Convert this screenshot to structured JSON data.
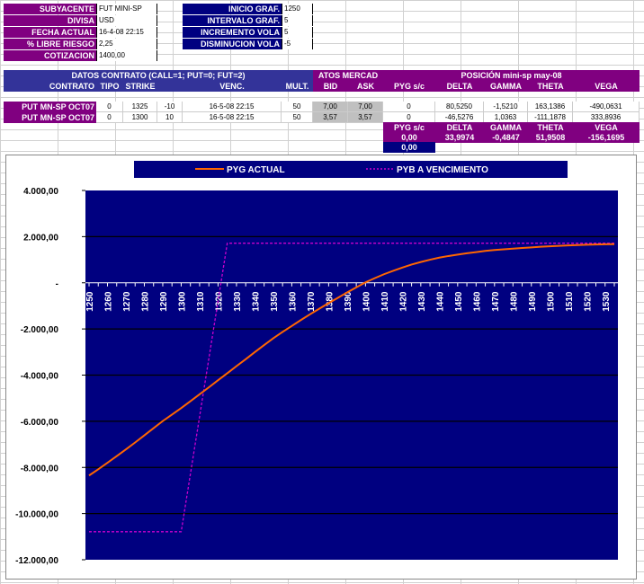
{
  "params_left": [
    {
      "label": "SUBYACENTE",
      "value": "FUT MINI-SP"
    },
    {
      "label": "DIVISA",
      "value": "USD"
    },
    {
      "label": "FECHA ACTUAL",
      "value": "16-4-08 22:15"
    },
    {
      "label": "% LIBRE RIESGO",
      "value": "2,25"
    },
    {
      "label": "COTIZACION",
      "value": "1400,00"
    }
  ],
  "params_right": [
    {
      "label": "INICIO GRAF.",
      "value": "1250"
    },
    {
      "label": "INTERVALO GRAF.",
      "value": "5"
    },
    {
      "label": "INCREMENTO VOLA",
      "value": "5"
    },
    {
      "label": "DISMINUCION VOLA",
      "value": "-5"
    }
  ],
  "table": {
    "group_contract": "DATOS CONTRATO (CALL=1; PUT=0; FUT=2)",
    "group_market": "ATOS MERCAD",
    "group_position": "POSICIÓN mini-sp may-08",
    "headers": [
      "CONTRATO",
      "TIPO",
      "STRIKE",
      "",
      "VENC.",
      "MULT.",
      "BID",
      "ASK",
      "PYG s/c",
      "DELTA",
      "GAMMA",
      "THETA",
      "VEGA"
    ],
    "rows": [
      [
        "PUT MN-SP OCT07",
        "0",
        "1325",
        "-10",
        "16-5-08 22:15",
        "50",
        "7,00",
        "7,00",
        "0",
        "80,5250",
        "-1,5210",
        "163,1386",
        "-490,0631"
      ],
      [
        "PUT MN-SP OCT07",
        "0",
        "1300",
        "10",
        "16-5-08 22:15",
        "50",
        "3,57",
        "3,57",
        "0",
        "-46,5276",
        "1,0363",
        "-111,1878",
        "333,8936"
      ]
    ],
    "summary_headers": [
      "PYG s/c",
      "DELTA",
      "GAMMA",
      "THETA",
      "VEGA"
    ],
    "summary_values": [
      "0,00",
      "33,9974",
      "-0,4847",
      "51,9508",
      "-156,1695"
    ],
    "extra_value": "0,00"
  },
  "chart_data": {
    "type": "line",
    "legend": [
      "PYG ACTUAL",
      "PYB A VENCIMIENTO"
    ],
    "legend_placement": "top",
    "colors": {
      "actual": "#ff6600",
      "expiry": "#cc00cc",
      "plot_bg": "#000080"
    },
    "ylim": [
      -12000,
      4000
    ],
    "yticks": [
      "4.000,00",
      "2.000,00",
      "-",
      "-2.000,00",
      "-4.000,00",
      "-6.000,00",
      "-8.000,00",
      "-10.000,00",
      "-12.000,00"
    ],
    "ytick_values": [
      4000,
      2000,
      0,
      -2000,
      -4000,
      -6000,
      -8000,
      -10000,
      -12000
    ],
    "xtick_labels": [
      "1250",
      "1260",
      "1270",
      "1280",
      "1290",
      "1300",
      "1310",
      "1320",
      "1330",
      "1340",
      "1350",
      "1360",
      "1370",
      "1380",
      "1390",
      "1400",
      "1410",
      "1420",
      "1430",
      "1440",
      "1450",
      "1460",
      "1470",
      "1480",
      "1490",
      "1500",
      "1510",
      "1520",
      "1530"
    ],
    "x": [
      1250,
      1255,
      1260,
      1265,
      1270,
      1275,
      1280,
      1285,
      1290,
      1295,
      1300,
      1305,
      1310,
      1315,
      1320,
      1325,
      1330,
      1335,
      1340,
      1345,
      1350,
      1355,
      1360,
      1365,
      1370,
      1375,
      1380,
      1385,
      1390,
      1395,
      1400,
      1405,
      1410,
      1415,
      1420,
      1425,
      1430,
      1435,
      1440,
      1445,
      1450,
      1455,
      1460,
      1465,
      1470,
      1475,
      1480,
      1485,
      1490,
      1495,
      1500,
      1505,
      1510,
      1515,
      1520,
      1525,
      1530,
      1535
    ],
    "series": [
      {
        "name": "PYG ACTUAL",
        "values": [
          -8350,
          -8080,
          -7800,
          -7510,
          -7220,
          -6920,
          -6610,
          -6300,
          -5990,
          -5710,
          -5430,
          -5130,
          -4830,
          -4530,
          -4220,
          -3920,
          -3610,
          -3310,
          -3000,
          -2700,
          -2400,
          -2130,
          -1870,
          -1610,
          -1360,
          -1120,
          -880,
          -650,
          -420,
          -200,
          20,
          200,
          370,
          520,
          660,
          790,
          900,
          1000,
          1090,
          1160,
          1220,
          1280,
          1330,
          1380,
          1420,
          1450,
          1480,
          1510,
          1535,
          1560,
          1580,
          1600,
          1620,
          1635,
          1650,
          1660,
          1670,
          1675
        ]
      },
      {
        "name": "PYB A VENCIMIENTO",
        "values": [
          -10785,
          -10785,
          -10785,
          -10785,
          -10785,
          -10785,
          -10785,
          -10785,
          -10785,
          -10785,
          -10785,
          -8285,
          -5785,
          -3285,
          -785,
          1715,
          1715,
          1715,
          1715,
          1715,
          1715,
          1715,
          1715,
          1715,
          1715,
          1715,
          1715,
          1715,
          1715,
          1715,
          1715,
          1715,
          1715,
          1715,
          1715,
          1715,
          1715,
          1715,
          1715,
          1715,
          1715,
          1715,
          1715,
          1715,
          1715,
          1715,
          1715,
          1715,
          1715,
          1715,
          1715,
          1715,
          1715,
          1715,
          1715,
          1715,
          1715,
          1715
        ]
      }
    ]
  }
}
